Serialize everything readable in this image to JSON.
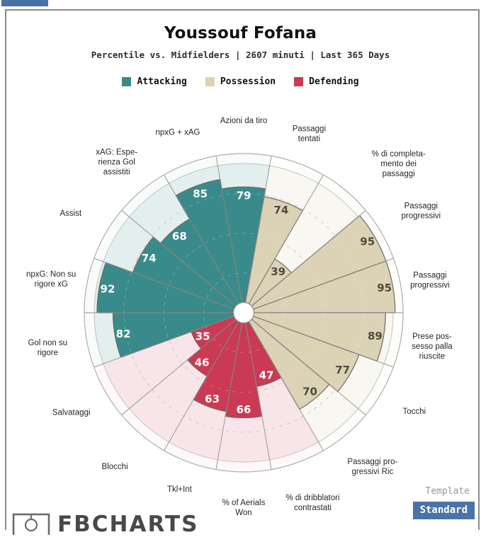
{
  "page": {
    "tab_color": "#4a70a8",
    "frame_border_color": "#8a8a8a"
  },
  "header": {
    "title": "Youssouf Fofana",
    "subtitle": "Percentile vs. Midfielders | 2607 minuti | Last 365 Days"
  },
  "footer": {
    "template_label": "Template",
    "template_button": "Standard",
    "button_color": "#4a73a8",
    "brand": "FBCHARTS"
  },
  "chart_data": {
    "type": "pizza",
    "scale": [
      0,
      100
    ],
    "gridlines_dashed": [
      25,
      50,
      75
    ],
    "legend_position": "top",
    "groups": [
      {
        "name": "Attacking",
        "color": "#398b8b",
        "bg": "#e2efee",
        "value_text": "#ffffff"
      },
      {
        "name": "Possession",
        "color": "#dcd2b6",
        "bg": "#f8f7f2",
        "value_text": "#4e4b3f"
      },
      {
        "name": "Defending",
        "color": "#cb3a54",
        "bg": "#f8e5e9",
        "value_text": "#ffffff"
      }
    ],
    "params": [
      {
        "label": [
          "Azioni da tiro"
        ],
        "value": 79,
        "group": "Attacking",
        "lr": 272
      },
      {
        "label": [
          "Passaggi",
          "tentati"
        ],
        "value": 74,
        "group": "Possession",
        "lr": 270
      },
      {
        "label": [
          "% di completa-",
          "mento dei",
          "passaggi"
        ],
        "value": 39,
        "group": "Possession",
        "lr": 304,
        "la": 46
      },
      {
        "label": [
          "Passaggi",
          "progressivi"
        ],
        "value": 95,
        "group": "Possession",
        "lr": 289
      },
      {
        "label": [
          "Passaggi",
          "progressivi"
        ],
        "value": 95,
        "group": "Possession",
        "lr": 267
      },
      {
        "label": [
          "Prese pos-",
          "sesso palla",
          "riuscite"
        ],
        "value": 89,
        "group": "Possession",
        "lr": 270
      },
      {
        "label": [
          "Tocchi"
        ],
        "value": 77,
        "group": "Possession",
        "lr": 278
      },
      {
        "label": [
          "Passaggi pro-",
          "gressivi Ric"
        ],
        "value": 70,
        "group": "Possession",
        "lr": 283
      },
      {
        "label": [
          "% di dribblatori",
          "contrastati"
        ],
        "value": 47,
        "group": "Defending",
        "lr": 285
      },
      {
        "label": [
          "% of Aerials",
          "Won"
        ],
        "value": 66,
        "group": "Defending",
        "lr": 275
      },
      {
        "label": [
          "Tkl+Int"
        ],
        "value": 63,
        "group": "Defending",
        "lr": 265
      },
      {
        "label": [
          "Blocchi"
        ],
        "value": 46,
        "group": "Defending",
        "lr": 283
      },
      {
        "label": [
          "Salvataggi"
        ],
        "value": 35,
        "group": "Defending",
        "lr": 281
      },
      {
        "label": [
          "Gol non su",
          "rigore"
        ],
        "value": 82,
        "group": "Attacking",
        "lr": 281
      },
      {
        "label": [
          "npxG: Non su",
          "rigore xG"
        ],
        "value": 92,
        "group": "Attacking",
        "lr": 276
      },
      {
        "label": [
          "Assist"
        ],
        "value": 74,
        "group": "Attacking",
        "lr": 282
      },
      {
        "label": [
          "xAG: Espe-",
          "rienza Gol",
          "assistiti"
        ],
        "value": 68,
        "group": "Attacking",
        "lr": 279
      },
      {
        "label": [
          "npxG + xAG"
        ],
        "value": 85,
        "group": "Attacking",
        "lr": 272
      }
    ]
  }
}
